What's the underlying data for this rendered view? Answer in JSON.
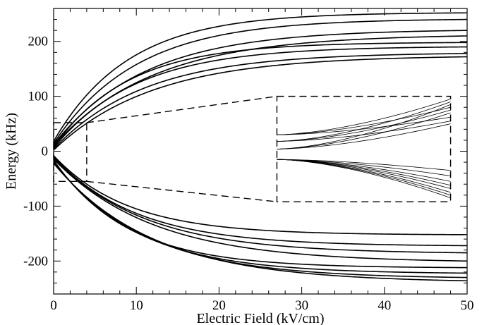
{
  "chart_data": {
    "type": "line",
    "title": "",
    "xlabel": "Electric Field (kV/cm)",
    "ylabel": "Energy (kHz)",
    "xlim": [
      0,
      50
    ],
    "ylim": [
      -260,
      260
    ],
    "x_ticks": [
      0,
      10,
      20,
      30,
      40,
      50
    ],
    "y_ticks": [
      200,
      100,
      0,
      -100,
      -200
    ],
    "x_tick_labels": [
      "0",
      "10",
      "20",
      "30",
      "40",
      "50"
    ],
    "y_tick_labels": [
      "200",
      "100",
      "0",
      "-100",
      "-200"
    ],
    "x_minor_step": 2,
    "y_minor_step": 20,
    "grid": false,
    "legend": "none",
    "line_color": "#000000",
    "upper_branch": {
      "values_at_x0": [
        18,
        14,
        12,
        10,
        8,
        6,
        4,
        2
      ],
      "values_at_x50": [
        252,
        240,
        220,
        210,
        198,
        190,
        178,
        172
      ]
    },
    "lower_branch": {
      "values_at_x0": [
        -8,
        -10,
        -12,
        -14,
        -16,
        -18,
        -20,
        -22
      ],
      "values_at_x50": [
        -152,
        -172,
        -185,
        -200,
        -212,
        -222,
        -230,
        -236
      ]
    },
    "inset": {
      "zoom_region": {
        "x": [
          0,
          4
        ],
        "y": [
          -55,
          52
        ]
      },
      "inset_box": {
        "x": [
          27,
          48
        ],
        "y": [
          -92,
          100
        ]
      },
      "upper_levels_at_start": [
        30,
        18,
        4
      ],
      "upper_levels_at_end": [
        95,
        90,
        85,
        80,
        75,
        70,
        62,
        55,
        50
      ],
      "lower_levels_at_start": [
        -15
      ],
      "lower_levels_at_end": [
        -35,
        -45,
        -55,
        -62,
        -68,
        -75,
        -80,
        -85
      ]
    }
  }
}
